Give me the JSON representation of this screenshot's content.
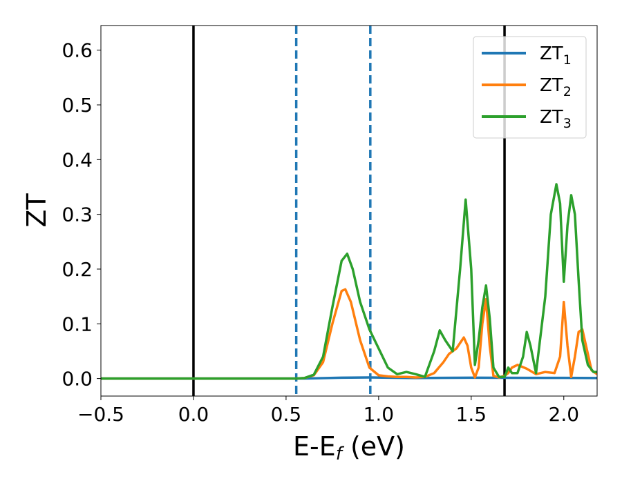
{
  "chart_data": {
    "type": "line",
    "xlabel": "E-E",
    "xlabel_sub": "f",
    "xlabel_unit": " (eV)",
    "ylabel": "ZT",
    "xlim": [
      -0.5,
      2.18
    ],
    "ylim": [
      -0.032,
      0.645
    ],
    "xticks": [
      -0.5,
      0.0,
      0.5,
      1.0,
      1.5,
      2.0
    ],
    "xtick_labels": [
      "−0.5",
      "0.0",
      "0.5",
      "1.0",
      "1.5",
      "2.0"
    ],
    "yticks": [
      0.0,
      0.1,
      0.2,
      0.3,
      0.4,
      0.5,
      0.6
    ],
    "ytick_labels": [
      "0.0",
      "0.1",
      "0.2",
      "0.3",
      "0.4",
      "0.5",
      "0.6"
    ],
    "grid": false,
    "legend_position": "top-right",
    "vlines": [
      {
        "x": 0.0,
        "style": "solid",
        "color": "#000000"
      },
      {
        "x": 0.555,
        "style": "dashed",
        "color": "#1f77b4"
      },
      {
        "x": 0.955,
        "style": "dashed",
        "color": "#1f77b4"
      },
      {
        "x": 1.68,
        "style": "solid",
        "color": "#000000"
      }
    ],
    "series": [
      {
        "name": "ZT",
        "name_sub": "1",
        "color": "#1f77b4",
        "x": [
          -0.5,
          0.6,
          0.8,
          0.95,
          1.2,
          1.5,
          1.8,
          2.0,
          2.18
        ],
        "y": [
          0.0,
          0.0,
          0.0015,
          0.002,
          0.001,
          0.0015,
          0.0012,
          0.0012,
          0.001
        ]
      },
      {
        "name": "ZT",
        "name_sub": "2",
        "color": "#ff7f0e",
        "x": [
          -0.5,
          0.55,
          0.6,
          0.65,
          0.7,
          0.75,
          0.8,
          0.82,
          0.85,
          0.9,
          0.95,
          1.0,
          1.05,
          1.1,
          1.15,
          1.2,
          1.25,
          1.3,
          1.35,
          1.38,
          1.42,
          1.46,
          1.48,
          1.5,
          1.52,
          1.54,
          1.56,
          1.58,
          1.6,
          1.62,
          1.65,
          1.68,
          1.7,
          1.72,
          1.75,
          1.8,
          1.85,
          1.9,
          1.95,
          1.98,
          2.0,
          2.02,
          2.04,
          2.06,
          2.08,
          2.1,
          2.12,
          2.15,
          2.18
        ],
        "y": [
          0.0,
          0.0,
          0.001,
          0.006,
          0.03,
          0.1,
          0.16,
          0.163,
          0.14,
          0.07,
          0.02,
          0.006,
          0.004,
          0.003,
          0.003,
          0.002,
          0.003,
          0.01,
          0.03,
          0.045,
          0.055,
          0.075,
          0.06,
          0.02,
          0.002,
          0.02,
          0.1,
          0.145,
          0.06,
          0.005,
          0.002,
          0.005,
          0.01,
          0.02,
          0.025,
          0.018,
          0.008,
          0.012,
          0.01,
          0.04,
          0.14,
          0.06,
          0.003,
          0.04,
          0.085,
          0.09,
          0.06,
          0.015,
          0.008
        ]
      },
      {
        "name": "ZT",
        "name_sub": "3",
        "color": "#2ca02c",
        "x": [
          -0.5,
          0.55,
          0.6,
          0.65,
          0.7,
          0.75,
          0.8,
          0.83,
          0.86,
          0.9,
          0.95,
          1.0,
          1.05,
          1.1,
          1.15,
          1.2,
          1.25,
          1.3,
          1.33,
          1.36,
          1.4,
          1.44,
          1.47,
          1.5,
          1.52,
          1.54,
          1.56,
          1.58,
          1.6,
          1.62,
          1.65,
          1.68,
          1.7,
          1.72,
          1.75,
          1.78,
          1.8,
          1.82,
          1.85,
          1.9,
          1.93,
          1.96,
          1.98,
          2.0,
          2.02,
          2.04,
          2.06,
          2.08,
          2.1,
          2.13,
          2.16,
          2.18
        ],
        "y": [
          0.0,
          0.0,
          0.001,
          0.007,
          0.04,
          0.13,
          0.215,
          0.228,
          0.2,
          0.14,
          0.09,
          0.055,
          0.02,
          0.008,
          0.012,
          0.008,
          0.003,
          0.05,
          0.088,
          0.07,
          0.05,
          0.2,
          0.327,
          0.2,
          0.025,
          0.07,
          0.13,
          0.17,
          0.11,
          0.02,
          0.003,
          0.003,
          0.02,
          0.01,
          0.01,
          0.04,
          0.085,
          0.06,
          0.01,
          0.15,
          0.3,
          0.355,
          0.32,
          0.177,
          0.28,
          0.335,
          0.3,
          0.18,
          0.07,
          0.025,
          0.012,
          0.012
        ]
      }
    ]
  }
}
